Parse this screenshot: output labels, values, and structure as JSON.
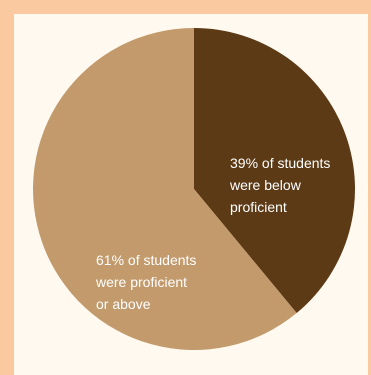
{
  "chart_data": {
    "type": "pie",
    "start_angle_deg": 0,
    "direction": "clockwise",
    "slices": [
      {
        "value": 39,
        "color": "#5c3a16",
        "label_lines": [
          "39% of students",
          "were below",
          "proficient"
        ]
      },
      {
        "value": 61,
        "color": "#c29a6c",
        "label_lines": [
          "61% of students",
          "were proficient",
          "or above"
        ]
      }
    ]
  }
}
